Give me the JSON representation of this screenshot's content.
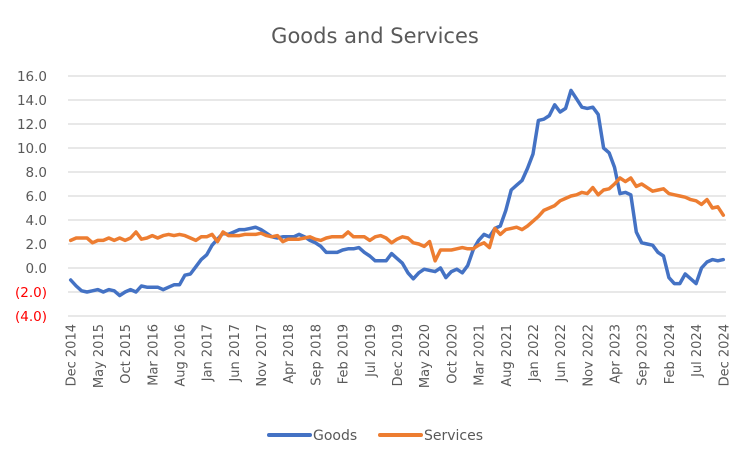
{
  "chart_data": {
    "type": "line",
    "title": "Goods and Services",
    "xlabel": "",
    "ylabel": "",
    "ylim": [
      -4.0,
      16.0
    ],
    "grid": true,
    "legend_position": "bottom",
    "yticks": [
      16.0,
      14.0,
      12.0,
      10.0,
      8.0,
      6.0,
      4.0,
      2.0,
      0.0,
      -2.0,
      -4.0
    ],
    "ytick_labels": [
      "16.0",
      "14.0",
      "12.0",
      "10.0",
      "8.0",
      "6.0",
      "4.0",
      "2.0",
      "0.0",
      "(2.0)",
      "(4.0)"
    ],
    "xtick_labels": [
      "Dec 2014",
      "May 2015",
      "Oct 2015",
      "Mar 2016",
      "Aug 2016",
      "Jan 2017",
      "Jun 2017",
      "Nov 2017",
      "Apr 2018",
      "Sep 2018",
      "Feb 2019",
      "Jul 2019",
      "Dec 2019",
      "May 2020",
      "Oct 2020",
      "Mar 2021",
      "Aug 2021",
      "Jan 2022",
      "Jun 2022",
      "Nov 2022",
      "Apr 2023",
      "Sep 2023",
      "Feb 2024",
      "Jul 2024",
      "Dec 2024"
    ],
    "x_start": "Dec 2014",
    "x_end": "Dec 2024",
    "x_frequency": "monthly",
    "series": [
      {
        "name": "Goods",
        "color": "#4472c4",
        "values": [
          -1.0,
          -1.5,
          -1.9,
          -2.0,
          -1.9,
          -1.8,
          -2.0,
          -1.8,
          -1.9,
          -2.3,
          -2.0,
          -1.8,
          -2.0,
          -1.5,
          -1.6,
          -1.6,
          -1.6,
          -1.8,
          -1.6,
          -1.4,
          -1.4,
          -0.6,
          -0.5,
          0.1,
          0.7,
          1.1,
          1.9,
          2.4,
          2.9,
          2.8,
          3.0,
          3.2,
          3.2,
          3.3,
          3.4,
          3.2,
          2.9,
          2.6,
          2.5,
          2.6,
          2.6,
          2.6,
          2.8,
          2.6,
          2.3,
          2.1,
          1.8,
          1.3,
          1.3,
          1.3,
          1.5,
          1.6,
          1.6,
          1.7,
          1.3,
          1.0,
          0.6,
          0.6,
          0.6,
          1.2,
          0.8,
          0.4,
          -0.4,
          -0.9,
          -0.4,
          -0.1,
          -0.2,
          -0.3,
          0.0,
          -0.8,
          -0.3,
          -0.1,
          -0.4,
          0.2,
          1.5,
          2.3,
          2.8,
          2.6,
          3.3,
          3.5,
          4.8,
          6.5,
          6.9,
          7.3,
          8.3,
          9.5,
          12.3,
          12.4,
          12.7,
          13.6,
          13.0,
          13.3,
          14.8,
          14.1,
          13.4,
          13.3,
          13.4,
          12.8,
          10.0,
          9.6,
          8.4,
          6.2,
          6.3,
          6.1,
          3.0,
          2.1,
          2.0,
          1.9,
          1.3,
          1.0,
          -0.8,
          -1.3,
          -1.3,
          -0.5,
          -0.9,
          -1.3,
          0.0,
          0.5,
          0.7,
          0.6,
          0.7
        ]
      },
      {
        "name": "Services",
        "color": "#ed7d31",
        "values": [
          2.3,
          2.5,
          2.5,
          2.5,
          2.1,
          2.3,
          2.3,
          2.5,
          2.3,
          2.5,
          2.3,
          2.5,
          3.0,
          2.4,
          2.5,
          2.7,
          2.5,
          2.7,
          2.8,
          2.7,
          2.8,
          2.7,
          2.5,
          2.3,
          2.6,
          2.6,
          2.8,
          2.2,
          3.0,
          2.7,
          2.7,
          2.7,
          2.8,
          2.8,
          2.8,
          2.9,
          2.7,
          2.6,
          2.7,
          2.2,
          2.4,
          2.4,
          2.4,
          2.5,
          2.6,
          2.4,
          2.3,
          2.5,
          2.6,
          2.6,
          2.6,
          3.0,
          2.6,
          2.6,
          2.6,
          2.3,
          2.6,
          2.7,
          2.5,
          2.1,
          2.4,
          2.6,
          2.5,
          2.1,
          2.0,
          1.8,
          2.2,
          0.6,
          1.5,
          1.5,
          1.5,
          1.6,
          1.7,
          1.6,
          1.6,
          1.9,
          2.1,
          1.7,
          3.3,
          2.8,
          3.2,
          3.3,
          3.4,
          3.2,
          3.5,
          3.9,
          4.3,
          4.8,
          5.0,
          5.2,
          5.6,
          5.8,
          6.0,
          6.1,
          6.3,
          6.2,
          6.7,
          6.1,
          6.5,
          6.6,
          7.0,
          7.5,
          7.2,
          7.5,
          6.8,
          7.0,
          6.7,
          6.4,
          6.5,
          6.6,
          6.2,
          6.1,
          6.0,
          5.9,
          5.7,
          5.6,
          5.3,
          5.7,
          5.0,
          5.1,
          4.4
        ]
      }
    ]
  }
}
